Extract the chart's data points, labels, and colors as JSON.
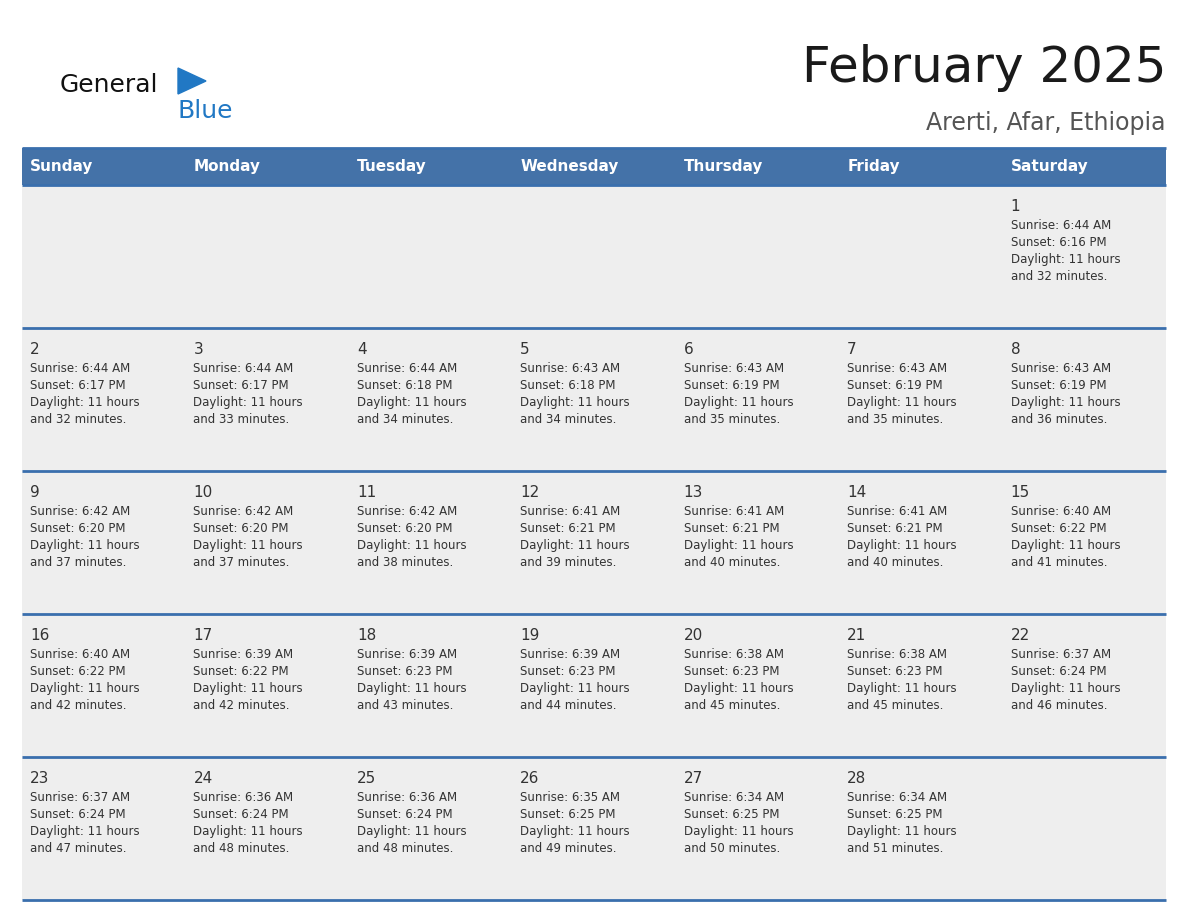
{
  "title": "February 2025",
  "subtitle": "Arerti, Afar, Ethiopia",
  "days_of_week": [
    "Sunday",
    "Monday",
    "Tuesday",
    "Wednesday",
    "Thursday",
    "Friday",
    "Saturday"
  ],
  "header_bg": "#4472a8",
  "header_text_color": "#ffffff",
  "cell_bg": "#eeeeee",
  "separator_color": "#3a6fad",
  "text_color": "#333333",
  "title_color": "#1a1a1a",
  "subtitle_color": "#555555",
  "logo_general_color": "#111111",
  "logo_blue_color": "#2178c4",
  "calendar": [
    [
      null,
      null,
      null,
      null,
      null,
      null,
      {
        "day": 1,
        "sunrise": "6:44 AM",
        "sunset": "6:16 PM",
        "daylight": "11 hours and 32 minutes."
      }
    ],
    [
      {
        "day": 2,
        "sunrise": "6:44 AM",
        "sunset": "6:17 PM",
        "daylight": "11 hours and 32 minutes."
      },
      {
        "day": 3,
        "sunrise": "6:44 AM",
        "sunset": "6:17 PM",
        "daylight": "11 hours and 33 minutes."
      },
      {
        "day": 4,
        "sunrise": "6:44 AM",
        "sunset": "6:18 PM",
        "daylight": "11 hours and 34 minutes."
      },
      {
        "day": 5,
        "sunrise": "6:43 AM",
        "sunset": "6:18 PM",
        "daylight": "11 hours and 34 minutes."
      },
      {
        "day": 6,
        "sunrise": "6:43 AM",
        "sunset": "6:19 PM",
        "daylight": "11 hours and 35 minutes."
      },
      {
        "day": 7,
        "sunrise": "6:43 AM",
        "sunset": "6:19 PM",
        "daylight": "11 hours and 35 minutes."
      },
      {
        "day": 8,
        "sunrise": "6:43 AM",
        "sunset": "6:19 PM",
        "daylight": "11 hours and 36 minutes."
      }
    ],
    [
      {
        "day": 9,
        "sunrise": "6:42 AM",
        "sunset": "6:20 PM",
        "daylight": "11 hours and 37 minutes."
      },
      {
        "day": 10,
        "sunrise": "6:42 AM",
        "sunset": "6:20 PM",
        "daylight": "11 hours and 37 minutes."
      },
      {
        "day": 11,
        "sunrise": "6:42 AM",
        "sunset": "6:20 PM",
        "daylight": "11 hours and 38 minutes."
      },
      {
        "day": 12,
        "sunrise": "6:41 AM",
        "sunset": "6:21 PM",
        "daylight": "11 hours and 39 minutes."
      },
      {
        "day": 13,
        "sunrise": "6:41 AM",
        "sunset": "6:21 PM",
        "daylight": "11 hours and 40 minutes."
      },
      {
        "day": 14,
        "sunrise": "6:41 AM",
        "sunset": "6:21 PM",
        "daylight": "11 hours and 40 minutes."
      },
      {
        "day": 15,
        "sunrise": "6:40 AM",
        "sunset": "6:22 PM",
        "daylight": "11 hours and 41 minutes."
      }
    ],
    [
      {
        "day": 16,
        "sunrise": "6:40 AM",
        "sunset": "6:22 PM",
        "daylight": "11 hours and 42 minutes."
      },
      {
        "day": 17,
        "sunrise": "6:39 AM",
        "sunset": "6:22 PM",
        "daylight": "11 hours and 42 minutes."
      },
      {
        "day": 18,
        "sunrise": "6:39 AM",
        "sunset": "6:23 PM",
        "daylight": "11 hours and 43 minutes."
      },
      {
        "day": 19,
        "sunrise": "6:39 AM",
        "sunset": "6:23 PM",
        "daylight": "11 hours and 44 minutes."
      },
      {
        "day": 20,
        "sunrise": "6:38 AM",
        "sunset": "6:23 PM",
        "daylight": "11 hours and 45 minutes."
      },
      {
        "day": 21,
        "sunrise": "6:38 AM",
        "sunset": "6:23 PM",
        "daylight": "11 hours and 45 minutes."
      },
      {
        "day": 22,
        "sunrise": "6:37 AM",
        "sunset": "6:24 PM",
        "daylight": "11 hours and 46 minutes."
      }
    ],
    [
      {
        "day": 23,
        "sunrise": "6:37 AM",
        "sunset": "6:24 PM",
        "daylight": "11 hours and 47 minutes."
      },
      {
        "day": 24,
        "sunrise": "6:36 AM",
        "sunset": "6:24 PM",
        "daylight": "11 hours and 48 minutes."
      },
      {
        "day": 25,
        "sunrise": "6:36 AM",
        "sunset": "6:24 PM",
        "daylight": "11 hours and 48 minutes."
      },
      {
        "day": 26,
        "sunrise": "6:35 AM",
        "sunset": "6:25 PM",
        "daylight": "11 hours and 49 minutes."
      },
      {
        "day": 27,
        "sunrise": "6:34 AM",
        "sunset": "6:25 PM",
        "daylight": "11 hours and 50 minutes."
      },
      {
        "day": 28,
        "sunrise": "6:34 AM",
        "sunset": "6:25 PM",
        "daylight": "11 hours and 51 minutes."
      },
      null
    ]
  ],
  "num_weeks": 5,
  "num_cols": 7,
  "fig_width": 11.88,
  "fig_height": 9.18,
  "dpi": 100
}
